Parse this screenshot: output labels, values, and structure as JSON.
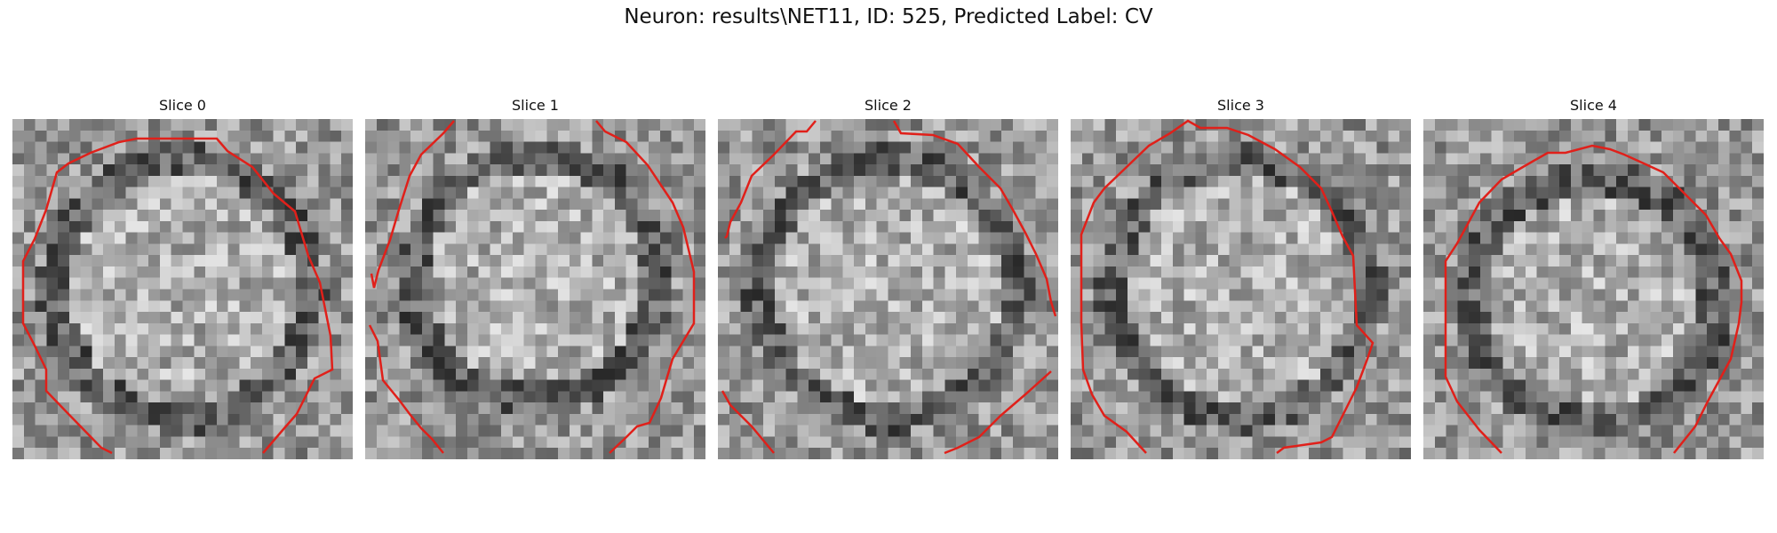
{
  "figure": {
    "title": "Neuron: results\\NET11, ID: 525, Predicted Label: CV"
  },
  "panels": [
    {
      "title": "Slice 0"
    },
    {
      "title": "Slice 1"
    },
    {
      "title": "Slice 2"
    },
    {
      "title": "Slice 3"
    },
    {
      "title": "Slice 4"
    }
  ],
  "colors": {
    "contour": "#e0201a",
    "background": "#ffffff"
  }
}
